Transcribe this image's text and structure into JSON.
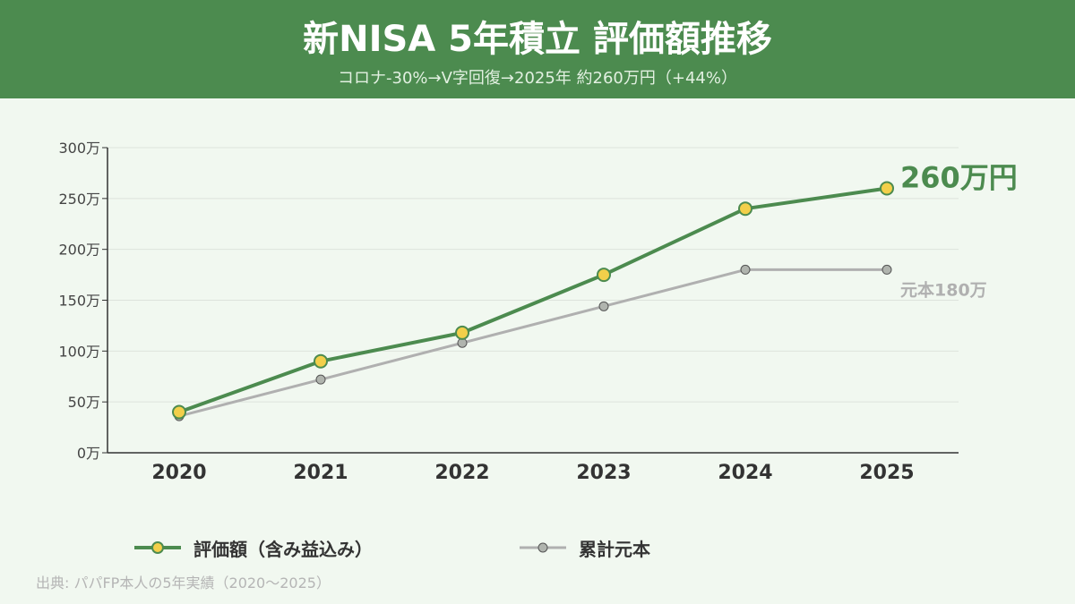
{
  "header": {
    "title": "新NISA 5年積立 評価額推移",
    "subtitle": "コロナ-30%→V字回復→2025年 約260万円（+44%）"
  },
  "colors": {
    "header_bg": "#4c8b4f",
    "valuation_line": "#4c8b4f",
    "valuation_marker": "#f2cf4a",
    "principal_line": "#b0b0b0",
    "principal_marker": "#b0b4ae",
    "background": "#f1f8f0"
  },
  "legend": {
    "valuation": "評価額（含み益込み）",
    "principal": "累計元本"
  },
  "source": "出典: パパFP本人の5年実績（2020〜2025）",
  "chart_data": {
    "type": "line",
    "categories": [
      "2020",
      "2021",
      "2022",
      "2023",
      "2024",
      "2025"
    ],
    "y_ticks": [
      0,
      50,
      100,
      150,
      200,
      250,
      300
    ],
    "y_tick_labels": [
      "0万",
      "50万",
      "100万",
      "150万",
      "200万",
      "250万",
      "300万"
    ],
    "ylim": [
      0,
      300
    ],
    "grid": true,
    "legend_position": "bottom",
    "series": [
      {
        "name": "評価額（含み益込み）",
        "values": [
          40,
          90,
          118,
          175,
          240,
          260
        ],
        "end_label": "260万円"
      },
      {
        "name": "累計元本",
        "values": [
          36,
          72,
          108,
          144,
          180,
          180
        ],
        "end_label": "元本180万"
      }
    ]
  }
}
